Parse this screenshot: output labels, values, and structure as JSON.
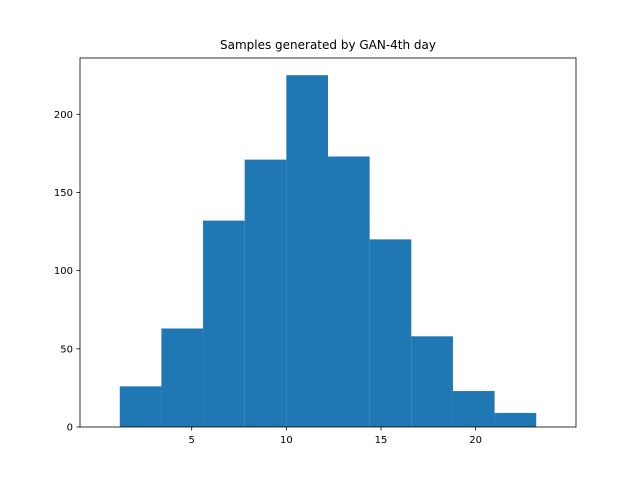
{
  "chart_data": {
    "type": "bar",
    "title": "Samples generated by GAN-4th day",
    "xlabel": "",
    "ylabel": "",
    "bin_edges": [
      1.2,
      3.4,
      5.6,
      7.8,
      10.0,
      12.2,
      14.4,
      16.6,
      18.8,
      21.0,
      23.2
    ],
    "values": [
      26,
      63,
      132,
      171,
      225,
      173,
      120,
      58,
      23,
      9
    ],
    "xlim": [
      -0.9,
      25.3
    ],
    "ylim": [
      0,
      236
    ],
    "xticks": [
      5,
      10,
      15,
      20
    ],
    "yticks": [
      0,
      50,
      100,
      150,
      200
    ],
    "grid": false,
    "bar_color": "#1f77b4"
  }
}
